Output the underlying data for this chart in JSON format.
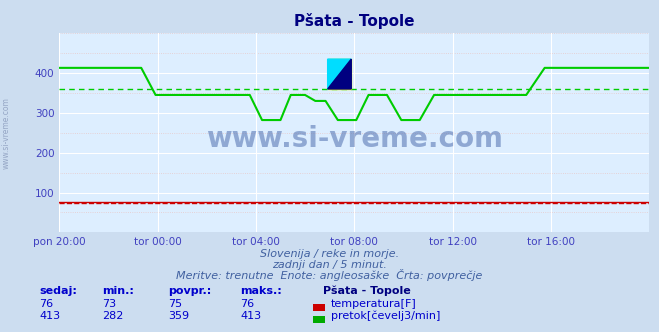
{
  "title": "Pšata - Topole",
  "bg_color": "#ccddf0",
  "plot_bg_color": "#ddeeff",
  "grid_color_white": "#ffffff",
  "grid_color_pink": "#e8c8c8",
  "title_color": "#000080",
  "tick_color": "#4040c0",
  "watermark_color": "#5070b0",
  "xlim": [
    0,
    288
  ],
  "ylim": [
    0,
    500
  ],
  "yticks": [
    100,
    200,
    300,
    400
  ],
  "xtick_labels": [
    "pon 20:00",
    "tor 00:00",
    "tor 04:00",
    "tor 08:00",
    "tor 12:00",
    "tor 16:00"
  ],
  "xtick_positions": [
    0,
    48,
    96,
    144,
    192,
    240
  ],
  "subtitle1": "Slovenija / reke in morje.",
  "subtitle2": "zadnji dan / 5 minut.",
  "subtitle3": "Meritve: trenutne  Enote: angleosaške  Črta: povprečje",
  "subtitle_color": "#4060a0",
  "watermark_text": "www.si-vreme.com",
  "table_headers": [
    "sedaj:",
    "min.:",
    "povpr.:",
    "maks.:"
  ],
  "table_col_color": "#0000cc",
  "station_label": "Pšata - Topole",
  "row1_values": [
    "76",
    "73",
    "75",
    "76"
  ],
  "row1_color": "#cc0000",
  "row1_label": "temperatura[F]",
  "row2_values": [
    "413",
    "282",
    "359",
    "413"
  ],
  "row2_color": "#00aa00",
  "row2_label": "pretok[čevelj3/min]",
  "avg_temp": 75,
  "avg_flow": 359,
  "temp_color": "#cc0000",
  "flow_color": "#00cc00",
  "side_text_color": "#8899bb"
}
